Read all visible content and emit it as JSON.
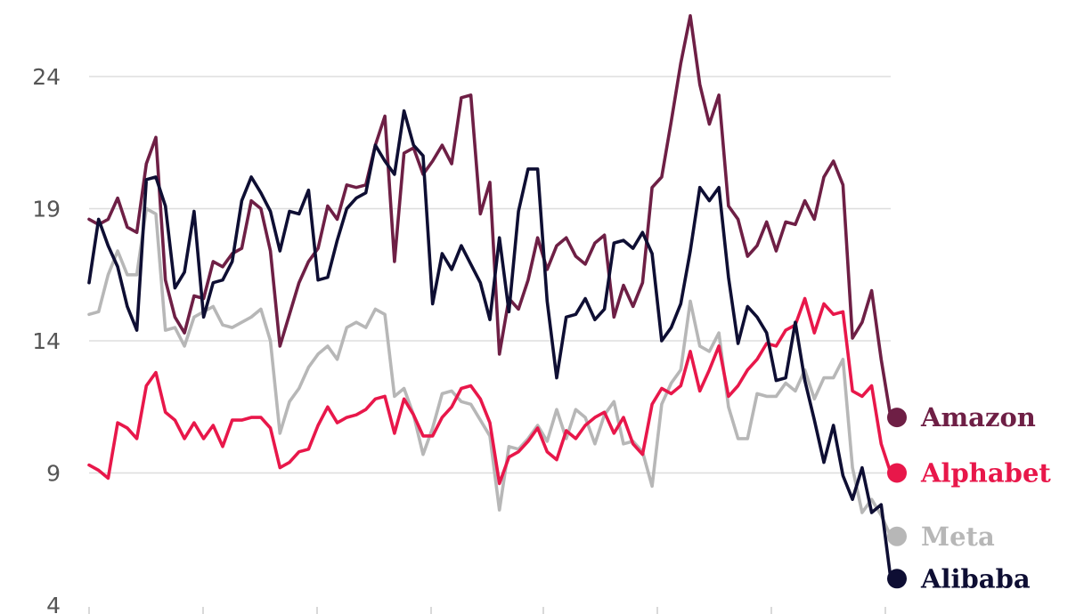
{
  "chart_data": {
    "type": "line",
    "title": "",
    "xlabel": "",
    "ylabel": "",
    "ylim": [
      4,
      26.5
    ],
    "yticks": [
      4,
      9,
      14,
      19,
      24
    ],
    "grid": "horizontal",
    "legend": "end-of-line labels, right",
    "series": [
      {
        "name": "Amazon",
        "color": "#6e1f45",
        "values": [
          18.6,
          18.4,
          18.6,
          19.4,
          18.3,
          18.1,
          20.7,
          21.7,
          16.3,
          14.9,
          14.3,
          15.7,
          15.6,
          17.0,
          16.8,
          17.3,
          17.5,
          19.3,
          19.0,
          17.4,
          13.8,
          15.0,
          16.2,
          17.0,
          17.5,
          19.1,
          18.6,
          19.9,
          19.8,
          19.9,
          21.4,
          22.5,
          17.0,
          21.1,
          21.3,
          20.3,
          20.8,
          21.4,
          20.7,
          23.2,
          23.3,
          18.8,
          20.0,
          13.5,
          15.6,
          15.2,
          16.3,
          17.9,
          16.7,
          17.6,
          17.9,
          17.2,
          16.9,
          17.7,
          18.0,
          14.9,
          16.1,
          15.3,
          16.2,
          19.8,
          20.2,
          22.3,
          24.5,
          26.3,
          23.7,
          22.2,
          23.3,
          19.1,
          18.6,
          17.2,
          17.6,
          18.5,
          17.4,
          18.5,
          18.4,
          19.3,
          18.6,
          20.2,
          20.8,
          19.9,
          14.1,
          14.7,
          15.9,
          13.3,
          11.1
        ]
      },
      {
        "name": "Alphabet",
        "color": "#e8174a",
        "values": [
          9.3,
          9.1,
          8.8,
          10.9,
          10.7,
          10.3,
          12.3,
          12.8,
          11.3,
          11.0,
          10.3,
          10.9,
          10.3,
          10.8,
          10.0,
          11.0,
          11.0,
          11.1,
          11.1,
          10.7,
          9.2,
          9.4,
          9.8,
          9.9,
          10.8,
          11.5,
          10.9,
          11.1,
          11.2,
          11.4,
          11.8,
          11.9,
          10.5,
          11.8,
          11.2,
          10.4,
          10.4,
          11.1,
          11.5,
          12.2,
          12.3,
          11.8,
          10.9,
          8.6,
          9.6,
          9.8,
          10.2,
          10.7,
          9.8,
          9.5,
          10.6,
          10.3,
          10.8,
          11.1,
          11.3,
          10.5,
          11.1,
          10.1,
          9.7,
          11.6,
          12.2,
          12.0,
          12.3,
          13.6,
          12.1,
          12.9,
          13.8,
          11.9,
          12.3,
          12.9,
          13.3,
          13.9,
          13.8,
          14.4,
          14.6,
          15.6,
          14.3,
          15.4,
          15.0,
          15.1,
          12.1,
          11.9,
          12.3,
          10.1,
          9.0
        ]
      },
      {
        "name": "Meta",
        "color": "#b7b7b7",
        "values": [
          15.0,
          15.1,
          16.5,
          17.4,
          16.5,
          16.5,
          19.0,
          18.8,
          14.4,
          14.5,
          13.8,
          14.9,
          15.1,
          15.3,
          14.6,
          14.5,
          14.7,
          14.9,
          15.2,
          14.0,
          10.5,
          11.7,
          12.2,
          13.0,
          13.5,
          13.8,
          13.3,
          14.5,
          14.7,
          14.5,
          15.2,
          15.0,
          11.9,
          12.2,
          11.2,
          9.7,
          10.7,
          12.0,
          12.1,
          11.7,
          11.6,
          11.0,
          10.4,
          7.6,
          10.0,
          9.9,
          10.3,
          10.8,
          10.2,
          11.4,
          10.3,
          11.4,
          11.1,
          10.1,
          11.2,
          11.7,
          10.1,
          10.2,
          9.8,
          8.5,
          11.6,
          12.4,
          12.9,
          15.5,
          13.8,
          13.6,
          14.3,
          11.5,
          10.3,
          10.3,
          12.0,
          11.9,
          11.9,
          12.4,
          12.1,
          12.9,
          11.8,
          12.6,
          12.6,
          13.3,
          9.2,
          7.5,
          8.0,
          7.4,
          6.6
        ]
      },
      {
        "name": "Alibaba",
        "color": "#0e0e33",
        "values": [
          16.2,
          18.6,
          17.6,
          16.8,
          15.3,
          14.4,
          20.1,
          20.2,
          19.1,
          16.0,
          16.6,
          18.9,
          14.9,
          16.2,
          16.3,
          17.0,
          19.3,
          20.2,
          19.6,
          18.9,
          17.4,
          18.9,
          18.8,
          19.7,
          16.3,
          16.4,
          17.8,
          19.0,
          19.4,
          19.6,
          21.4,
          20.8,
          20.3,
          22.7,
          21.4,
          21.0,
          15.4,
          17.3,
          16.7,
          17.6,
          16.9,
          16.2,
          14.8,
          17.9,
          15.1,
          18.9,
          20.5,
          20.5,
          15.5,
          12.6,
          14.9,
          15.0,
          15.6,
          14.8,
          15.2,
          17.7,
          17.8,
          17.5,
          18.1,
          17.3,
          14.0,
          14.5,
          15.4,
          17.4,
          19.8,
          19.3,
          19.8,
          16.4,
          13.9,
          15.3,
          14.9,
          14.3,
          12.5,
          12.6,
          14.7,
          12.5,
          11.0,
          9.4,
          10.8,
          8.9,
          8.0,
          9.2,
          7.5,
          7.8,
          5.0
        ]
      }
    ]
  }
}
